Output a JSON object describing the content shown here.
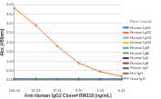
{
  "chart_data": {
    "type": "line",
    "x_label": "Anti-Human IgG2 Clone# RM118 (ng/mL)",
    "y_label": "Abs (450nm)",
    "legend_title": "Plate Coated:",
    "legend": "right",
    "grid": true,
    "categories": [
      "100.00",
      "33.33",
      "11.11",
      "3.70",
      "1.23",
      "0.41"
    ],
    "ylim": [
      0,
      4
    ],
    "yticks": [
      {
        "value": 0,
        "label": "0.00"
      },
      {
        "value": 0.5,
        "label": "0.50"
      },
      {
        "value": 1,
        "label": "1.00"
      },
      {
        "value": 1.5,
        "label": "1.50"
      },
      {
        "value": 2,
        "label": "2.00"
      },
      {
        "value": 2.5,
        "label": "2.50"
      },
      {
        "value": 3,
        "label": "3.00"
      },
      {
        "value": 3.5,
        "label": "3.50"
      },
      {
        "value": 4,
        "label": "4.00"
      }
    ],
    "series": [
      {
        "name": "Human IgG1",
        "color": "#4472c4",
        "values": [
          0.06,
          0.05,
          0.05,
          0.05,
          0.05,
          0.05
        ]
      },
      {
        "name": "Human IgG2",
        "color": "#ed7d31",
        "values": [
          3.8,
          2.9,
          1.8,
          0.9,
          0.45,
          0.2
        ]
      },
      {
        "name": "Human IgG3",
        "color": "#a5a5a5",
        "values": [
          0.06,
          0.05,
          0.05,
          0.05,
          0.05,
          0.05
        ]
      },
      {
        "name": "Human IgG4",
        "color": "#ffc000",
        "values": [
          0.06,
          0.05,
          0.05,
          0.05,
          0.05,
          0.05
        ]
      },
      {
        "name": "Human IgM",
        "color": "#5b9bd5",
        "values": [
          0.05,
          0.05,
          0.05,
          0.05,
          0.05,
          0.05
        ]
      },
      {
        "name": "Human IgA",
        "color": "#70ad47",
        "values": [
          0.05,
          0.05,
          0.05,
          0.05,
          0.05,
          0.05
        ]
      },
      {
        "name": "Human IgD",
        "color": "#264478",
        "values": [
          0.05,
          0.05,
          0.05,
          0.05,
          0.05,
          0.05
        ]
      },
      {
        "name": "Human IgE",
        "color": "#9e480e",
        "values": [
          0.05,
          0.05,
          0.05,
          0.05,
          0.05,
          0.05
        ]
      },
      {
        "name": "Mouse IgG",
        "color": "#636363",
        "values": [
          0.05,
          0.05,
          0.05,
          0.05,
          0.05,
          0.05
        ]
      },
      {
        "name": "Rat IgG",
        "color": "#997300",
        "values": [
          0.05,
          0.05,
          0.05,
          0.05,
          0.05,
          0.05
        ]
      },
      {
        "name": "Goat IgG",
        "color": "#8faadc",
        "values": [
          0.05,
          0.05,
          0.05,
          0.05,
          0.05,
          0.05
        ]
      }
    ]
  }
}
